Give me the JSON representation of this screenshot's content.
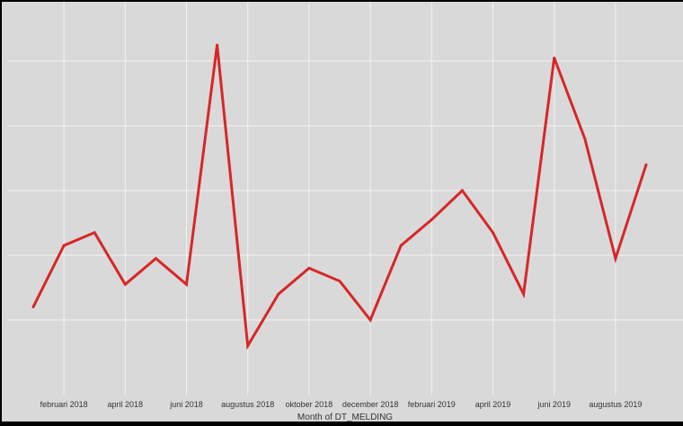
{
  "colors": {
    "panel": "#d9d9d9",
    "grid": "#f2f2f2",
    "line": "#d62728",
    "text": "#333333"
  },
  "chart_data": {
    "type": "line",
    "xlabel": "Month of DT_MELDING",
    "ylabel": "",
    "grid": true,
    "x": [
      "januari 2018",
      "februari 2018",
      "maart 2018",
      "april 2018",
      "mei 2018",
      "juni 2018",
      "juli 2018",
      "augustus 2018",
      "september 2018",
      "oktober 2018",
      "november 2018",
      "december 2018",
      "januari 2019",
      "februari 2019",
      "maart 2019",
      "april 2019",
      "mei 2019",
      "juni 2019",
      "juli 2019",
      "augustus 2019",
      "september 2019"
    ],
    "x_tick_labels": [
      "februari 2018",
      "april 2018",
      "juni 2018",
      "augustus 2018",
      "oktober 2018",
      "december 2018",
      "februari 2019",
      "april 2019",
      "juni 2019",
      "augustus 2019"
    ],
    "series": [
      {
        "values": [
          0.2,
          1.15,
          1.35,
          0.55,
          0.95,
          0.55,
          4.25,
          -0.4,
          0.4,
          0.8,
          0.6,
          0.0,
          1.15,
          1.55,
          2.0,
          1.35,
          0.4,
          4.05,
          2.8,
          0.95,
          2.4
        ]
      }
    ],
    "ylim": [
      -0.5,
      4.5
    ],
    "ygrid": [
      0,
      1,
      2,
      3,
      4
    ]
  }
}
